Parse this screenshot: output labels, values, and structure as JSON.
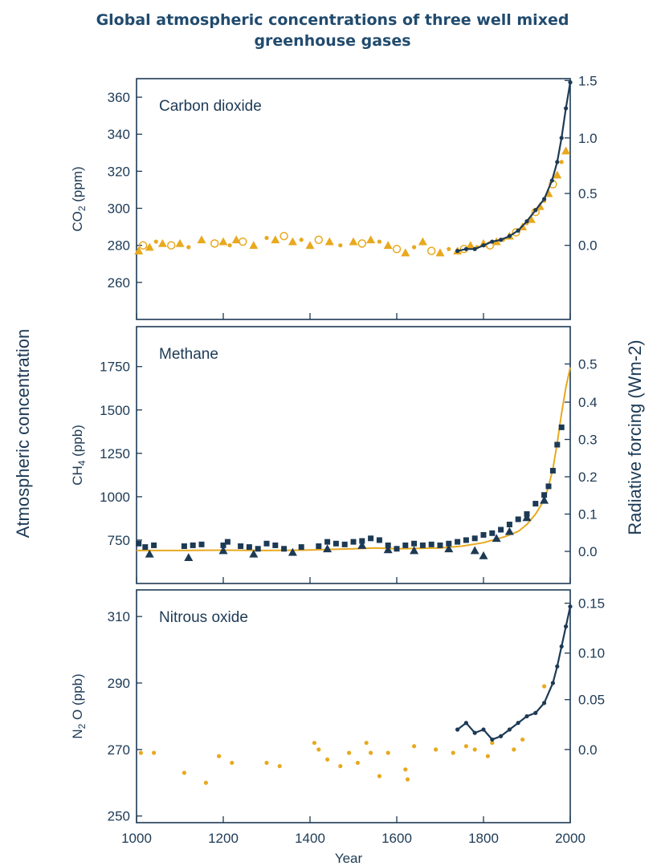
{
  "title_line1": "Global atmospheric concentrations of three well mixed",
  "title_line2": "greenhouse gases",
  "left_axis_title": "Atmospheric concentration",
  "right_axis_title": "Radiative forcing  (Wm-2)",
  "x_axis_title": "Year",
  "colors": {
    "frame": "#1d3a55",
    "ice_core": "#e8a91f",
    "instrumental": "#1d3a55",
    "title": "#214b6e"
  },
  "chart_data": [
    {
      "type": "scatter",
      "label": "Carbon dioxide",
      "ylabel": "CO2  (ppm)",
      "ylabel_main": "CO",
      "ylabel_sub": "2",
      "ylabel_unit": "(ppm)",
      "xlim": [
        1000,
        2000
      ],
      "ylim": [
        240,
        370
      ],
      "yticks": [
        260,
        280,
        300,
        320,
        340,
        360
      ],
      "right_label": "Radiative forcing (Wm-2)",
      "right_ticks": [
        {
          "label": "1.5",
          "y": 369
        },
        {
          "label": "1.0",
          "y": 338
        },
        {
          "label": "0.5",
          "y": 308
        },
        {
          "label": "0.0",
          "y": 280
        }
      ],
      "xticks": [
        1000,
        1200,
        1400,
        1600,
        1800,
        2000
      ],
      "series": [
        {
          "kind": "ice_core",
          "x": [
            1005,
            1015,
            1030,
            1045,
            1060,
            1080,
            1100,
            1120,
            1150,
            1180,
            1200,
            1215,
            1230,
            1245,
            1270,
            1300,
            1320,
            1340,
            1360,
            1380,
            1400,
            1420,
            1445,
            1470,
            1500,
            1520,
            1540,
            1560,
            1580,
            1600,
            1620,
            1640,
            1660,
            1680,
            1700,
            1720,
            1740,
            1755,
            1770,
            1785,
            1800,
            1815,
            1830,
            1845,
            1860,
            1875,
            1890,
            1900,
            1910,
            1920,
            1930,
            1940,
            1950,
            1960,
            1970,
            1980,
            1990
          ],
          "y": [
            277,
            280,
            279,
            282,
            281,
            280,
            281,
            279,
            283,
            281,
            282,
            280,
            283,
            282,
            280,
            284,
            283,
            285,
            282,
            283,
            280,
            283,
            282,
            280,
            282,
            281,
            283,
            282,
            280,
            278,
            276,
            279,
            282,
            277,
            276,
            278,
            277,
            278,
            280,
            279,
            281,
            280,
            282,
            283,
            285,
            287,
            290,
            292,
            294,
            298,
            301,
            304,
            308,
            313,
            318,
            325,
            331
          ]
        },
        {
          "kind": "instrumental",
          "x": [
            1740,
            1760,
            1780,
            1800,
            1820,
            1840,
            1860,
            1880,
            1900,
            1920,
            1940,
            1958,
            1970,
            1980,
            1990,
            2000
          ],
          "y": [
            277,
            278,
            278,
            280,
            282,
            283,
            285,
            288,
            293,
            299,
            305,
            315,
            325,
            338,
            354,
            368
          ]
        }
      ]
    },
    {
      "type": "scatter",
      "label": "Methane",
      "ylabel": "CH4  (ppb)",
      "ylabel_main": "CH",
      "ylabel_sub": "4",
      "ylabel_unit": "(ppb)",
      "xlim": [
        1000,
        2000
      ],
      "ylim": [
        500,
        1980
      ],
      "yticks": [
        750,
        1000,
        1250,
        1500,
        1750
      ],
      "right_label": "Radiative forcing (Wm-2)",
      "right_ticks": [
        {
          "label": "0.5",
          "y": 1765
        },
        {
          "label": "0.4",
          "y": 1545
        },
        {
          "label": "0.3",
          "y": 1330
        },
        {
          "label": "0.2",
          "y": 1115
        },
        {
          "label": "0.1",
          "y": 900
        },
        {
          "label": "0.0",
          "y": 685
        }
      ],
      "xticks": [
        1000,
        1200,
        1400,
        1600,
        1800,
        2000
      ],
      "series": [
        {
          "kind": "fit_line",
          "x": [
            1000,
            1100,
            1200,
            1300,
            1400,
            1500,
            1550,
            1600,
            1650,
            1700,
            1750,
            1800,
            1850,
            1880,
            1900,
            1920,
            1940,
            1950,
            1960,
            1970,
            1980,
            1990,
            2000
          ],
          "y": [
            690,
            690,
            692,
            690,
            693,
            700,
            705,
            700,
            702,
            705,
            715,
            735,
            770,
            800,
            840,
            900,
            980,
            1060,
            1160,
            1310,
            1480,
            1630,
            1745
          ]
        },
        {
          "kind": "observations",
          "x": [
            1005,
            1020,
            1040,
            1110,
            1130,
            1150,
            1200,
            1210,
            1240,
            1260,
            1280,
            1300,
            1320,
            1340,
            1380,
            1420,
            1440,
            1460,
            1480,
            1500,
            1520,
            1540,
            1560,
            1580,
            1600,
            1620,
            1640,
            1660,
            1680,
            1700,
            1720,
            1740,
            1760,
            1780,
            1800,
            1820,
            1840,
            1860,
            1880,
            1900,
            1920,
            1940,
            1950,
            1960,
            1970,
            1980
          ],
          "y": [
            730,
            710,
            720,
            715,
            720,
            725,
            720,
            740,
            715,
            710,
            700,
            730,
            720,
            700,
            710,
            715,
            740,
            730,
            725,
            740,
            745,
            760,
            750,
            720,
            700,
            720,
            730,
            720,
            725,
            720,
            730,
            740,
            750,
            760,
            780,
            790,
            810,
            840,
            870,
            900,
            960,
            1010,
            1060,
            1150,
            1300,
            1400
          ]
        },
        {
          "kind": "observations_alt",
          "x": [
            1030,
            1120,
            1200,
            1270,
            1360,
            1440,
            1520,
            1580,
            1640,
            1720,
            1780,
            1800,
            1830,
            1860,
            1900,
            1940
          ],
          "y": [
            670,
            650,
            690,
            670,
            680,
            700,
            720,
            695,
            690,
            700,
            690,
            660,
            760,
            800,
            880,
            980
          ]
        }
      ]
    },
    {
      "type": "scatter",
      "label": "Nitrous oxide",
      "ylabel": "N2O  (ppb)",
      "ylabel_main": "N",
      "ylabel_sub": "2",
      "ylabel_unit": "O  (ppb)",
      "xlim": [
        1000,
        2000
      ],
      "ylim": [
        248,
        318
      ],
      "yticks": [
        250,
        270,
        290,
        310
      ],
      "right_label": "Radiative forcing (Wm-2)",
      "right_ticks": [
        {
          "label": "0.15",
          "y": 314
        },
        {
          "label": "0.10",
          "y": 299
        },
        {
          "label": "0.05",
          "y": 285
        },
        {
          "label": "0.0",
          "y": 270
        }
      ],
      "xticks": [
        1000,
        1200,
        1400,
        1600,
        1800,
        2000
      ],
      "series": [
        {
          "kind": "ice_core",
          "x": [
            1010,
            1040,
            1110,
            1160,
            1190,
            1220,
            1300,
            1330,
            1410,
            1420,
            1440,
            1470,
            1490,
            1510,
            1530,
            1540,
            1560,
            1580,
            1620,
            1625,
            1640,
            1690,
            1730,
            1760,
            1780,
            1810,
            1820,
            1870,
            1890,
            1940
          ],
          "y": [
            269,
            269,
            263,
            260,
            268,
            266,
            266,
            265,
            272,
            270,
            267,
            265,
            269,
            266,
            272,
            269,
            262,
            269,
            264,
            261,
            271,
            270,
            269,
            271,
            270,
            268,
            272,
            270,
            273,
            289
          ]
        },
        {
          "kind": "instrumental",
          "x": [
            1740,
            1760,
            1780,
            1800,
            1820,
            1840,
            1860,
            1880,
            1900,
            1920,
            1940,
            1960,
            1970,
            1980,
            1990,
            2000
          ],
          "y": [
            276,
            278,
            275,
            276,
            273,
            274,
            276,
            278,
            280,
            281,
            284,
            290,
            295,
            301,
            307,
            313
          ]
        }
      ]
    }
  ]
}
